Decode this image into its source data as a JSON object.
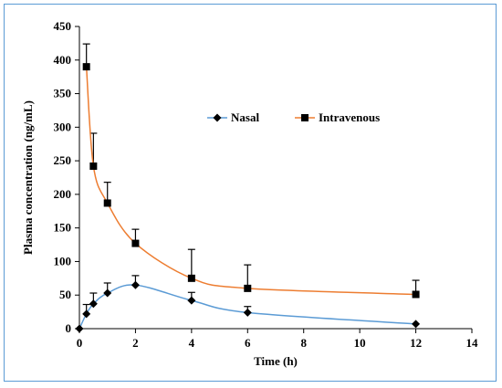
{
  "chart_data": {
    "type": "line",
    "title": "",
    "xlabel": "Time (h)",
    "ylabel": "Plasma concentration (ng/mL)",
    "xlim": [
      0,
      14
    ],
    "ylim": [
      0,
      450
    ],
    "xticks": [
      0,
      2,
      4,
      6,
      8,
      10,
      12,
      14
    ],
    "yticks": [
      0,
      50,
      100,
      150,
      200,
      250,
      300,
      350,
      400,
      450
    ],
    "grid": false,
    "legend_position": "top-center",
    "series": [
      {
        "name": "Nasal",
        "marker": "diamond",
        "line_color": "#5b9bd5",
        "marker_color": "#000000",
        "x": [
          0,
          0.25,
          0.5,
          1,
          2,
          4,
          6,
          12
        ],
        "y": [
          0,
          22,
          37,
          53,
          65,
          42,
          24,
          7
        ],
        "error_up": [
          0,
          14,
          16,
          15,
          14,
          12,
          9,
          0
        ]
      },
      {
        "name": "Intravenous",
        "marker": "square",
        "line_color": "#ed7d31",
        "marker_color": "#000000",
        "x": [
          0.25,
          0.5,
          1,
          2,
          4,
          6,
          12
        ],
        "y": [
          390,
          242,
          187,
          127,
          75,
          60,
          51
        ],
        "error_up": [
          34,
          49,
          31,
          21,
          43,
          35,
          21
        ]
      }
    ]
  }
}
